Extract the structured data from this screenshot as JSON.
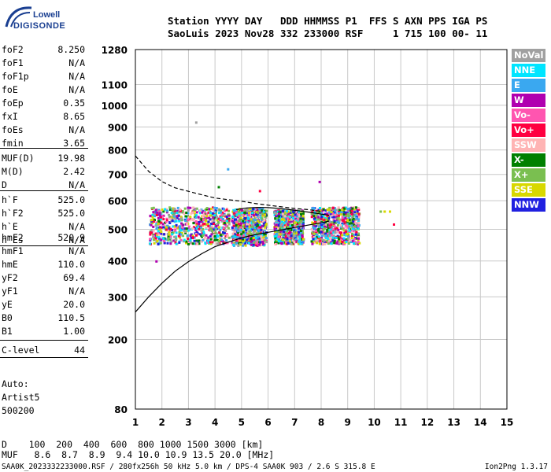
{
  "logo": {
    "line1": "Lowell",
    "line2": "DIGISONDE"
  },
  "header": {
    "line1": "Station YYYY DAY   DDD HHMMSS P1  FFS S AXN PPS IGA PS",
    "line2": "SaoLuis 2023 Nov28 332 233000 RSF     1 715 100 00- 11"
  },
  "params": [
    {
      "name": "foF2",
      "value": "8.250"
    },
    {
      "name": "foF1",
      "value": "N/A"
    },
    {
      "name": "foF1p",
      "value": "N/A"
    },
    {
      "name": "foE",
      "value": "N/A"
    },
    {
      "name": "foEp",
      "value": "0.35"
    },
    {
      "name": "fxI",
      "value": "8.65"
    },
    {
      "name": "foEs",
      "value": "N/A"
    },
    {
      "name": "fmin",
      "value": "3.65"
    },
    {
      "name": "MUF(D)",
      "value": "19.98"
    },
    {
      "name": "M(D)",
      "value": "2.42"
    },
    {
      "name": "D",
      "value": "N/A"
    },
    {
      "name": "h`F",
      "value": "525.0"
    },
    {
      "name": "h`F2",
      "value": "525.0"
    },
    {
      "name": "h`E",
      "value": "N/A"
    },
    {
      "name": "h`Es",
      "value": "N/A"
    },
    {
      "name": "hmF2",
      "value": "520.9"
    },
    {
      "name": "hmF1",
      "value": "N/A"
    },
    {
      "name": "hmE",
      "value": "110.0"
    },
    {
      "name": "yF2",
      "value": "69.4"
    },
    {
      "name": "yF1",
      "value": "N/A"
    },
    {
      "name": "yE",
      "value": "20.0"
    },
    {
      "name": "B0",
      "value": "110.5"
    },
    {
      "name": "B1",
      "value": "1.00"
    },
    {
      "name": "C-level",
      "value": "44"
    }
  ],
  "auto": {
    "label": "Auto:",
    "artist": "Artist5",
    "version": "500200"
  },
  "legend": [
    {
      "label": "NoVal",
      "color": "#a0a0a0"
    },
    {
      "label": "NNE",
      "color": "#00e5ff"
    },
    {
      "label": "E",
      "color": "#3aa8f0"
    },
    {
      "label": "W",
      "color": "#b000b0"
    },
    {
      "label": "Vo-",
      "color": "#ff55b0"
    },
    {
      "label": "Vo+",
      "color": "#ff0040"
    },
    {
      "label": "SSW",
      "color": "#ffb4b4"
    },
    {
      "label": "X-",
      "color": "#008000"
    },
    {
      "label": "X+",
      "color": "#7abf50"
    },
    {
      "label": "SSE",
      "color": "#d8d800"
    },
    {
      "label": "NNW",
      "color": "#2020e0"
    }
  ],
  "bottom": {
    "d_line": "D    100  200  400  600  800 1000 1500 3000 [km]",
    "muf_line": "MUF   8.6  8.7  8.9  9.4 10.0 10.9 13.5 20.0 [MHz]",
    "footer_left": "SAA0K_2023332233000.RSF / 280fx256h 50 kHz 5.0 km / DPS-4 SAA0K 903 / 2.6 S 315.8 E",
    "footer_right": "Ion2Png 1.3.17"
  },
  "chart_data": {
    "type": "scatter",
    "xlim": [
      1,
      15
    ],
    "ylim": [
      80,
      1280
    ],
    "y_scale": "square-root",
    "x_ticks": [
      "1",
      "2",
      "3",
      "4",
      "5",
      "6",
      "7",
      "8",
      "9",
      "10",
      "11",
      "12",
      "13",
      "14",
      "15"
    ],
    "y_ticks": [
      "80",
      "200",
      "300",
      "400",
      "500",
      "600",
      "700",
      "800",
      "900",
      "1000",
      "1100",
      "1280"
    ],
    "grid": true,
    "curves": [
      {
        "style": "dashed",
        "x": [
          1.0,
          1.5,
          2.0,
          2.5,
          3.0,
          3.5,
          4.0,
          4.5,
          5.0,
          5.5,
          6.0,
          6.5,
          7.0,
          7.5,
          8.0
        ],
        "y": [
          775,
          712,
          672,
          648,
          635,
          622,
          610,
          604,
          598,
          590,
          584,
          578,
          572,
          568,
          562
        ]
      },
      {
        "style": "solid",
        "x": [
          1.0,
          1.5,
          2.0,
          2.5,
          3.0,
          3.5,
          4.0,
          4.5,
          5.0,
          5.5,
          6.0,
          6.5,
          7.0,
          7.5,
          8.0,
          8.3
        ],
        "y": [
          262,
          300,
          336,
          370,
          398,
          422,
          444,
          458,
          472,
          482,
          490,
          498,
          506,
          514,
          522,
          528
        ]
      },
      {
        "style": "solid",
        "x": [
          4.8,
          5.2,
          5.6,
          6.0,
          6.4,
          6.8,
          7.2,
          7.6,
          8.0,
          8.3
        ],
        "y": [
          568,
          574,
          576,
          575,
          572,
          568,
          563,
          558,
          552,
          548
        ]
      }
    ],
    "echo_clusters": [
      {
        "x": [
          1.5,
          4.5
        ],
        "y": [
          455,
          580
        ]
      },
      {
        "x": [
          4.6,
          5.9
        ],
        "y": [
          450,
          575
        ]
      },
      {
        "x": [
          6.2,
          7.3
        ],
        "y": [
          455,
          570
        ]
      },
      {
        "x": [
          7.6,
          9.4
        ],
        "y": [
          455,
          580
        ]
      }
    ],
    "scattered_points": [
      {
        "x": 3.25,
        "y": 925,
        "class": "NoVal"
      },
      {
        "x": 4.45,
        "y": 725,
        "class": "E"
      },
      {
        "x": 10.2,
        "y": 565,
        "class": "X+"
      },
      {
        "x": 10.35,
        "y": 565,
        "class": "SSE"
      },
      {
        "x": 10.55,
        "y": 565,
        "class": "SSE"
      },
      {
        "x": 10.7,
        "y": 520,
        "class": "Vo+"
      },
      {
        "x": 1.75,
        "y": 402,
        "class": "W"
      },
      {
        "x": 7.9,
        "y": 675,
        "class": "W"
      },
      {
        "x": 5.65,
        "y": 640,
        "class": "Vo+"
      },
      {
        "x": 4.1,
        "y": 655,
        "class": "X-"
      }
    ]
  }
}
